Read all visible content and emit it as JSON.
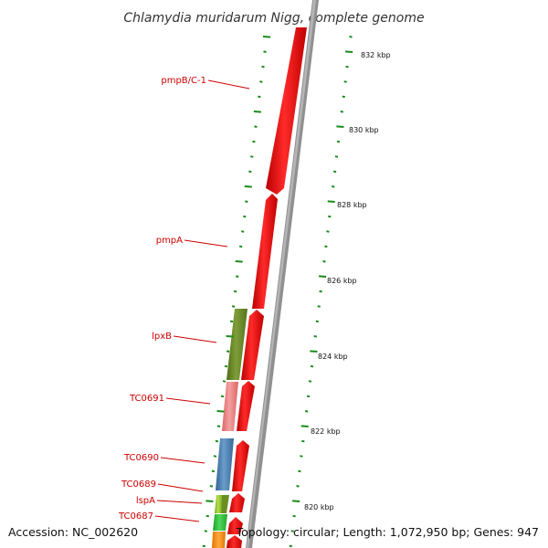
{
  "title": "Chlamydia muridarum Nigg, complete genome",
  "genes": [
    {
      "name": "pmpB/C-1",
      "color": "#ff0000",
      "strand": "forward"
    },
    {
      "name": "pmpA",
      "color": "#ff0000",
      "strand": "forward"
    },
    {
      "name": "lpxB",
      "color": "#6b8e23",
      "strand": "reverse"
    },
    {
      "name": "TC0691",
      "color": "#f08080",
      "strand": "reverse"
    },
    {
      "name": "TC0690",
      "color": "#4682b4",
      "strand": "reverse"
    },
    {
      "name": "TC0689",
      "color": "#9acd32",
      "strand": "reverse"
    },
    {
      "name": "lspA",
      "color": "#9acd32",
      "strand": "reverse"
    },
    {
      "name": "TC0687",
      "color": "#32cd32",
      "strand": "reverse"
    }
  ],
  "kbp_ticks": [
    "832 kbp",
    "830 kbp",
    "828 kbp",
    "826 kbp",
    "824 kbp",
    "822 kbp",
    "820 kbp"
  ],
  "colors": {
    "forward_gene": "#ff0000",
    "backbone": "#909090",
    "tick": "#1a8a1a",
    "label": "#cc0000"
  },
  "footer": {
    "accession": "Accession: NC_002620",
    "topology": "Topology: circular; Length: 1,072,950 bp; Genes: 947"
  }
}
